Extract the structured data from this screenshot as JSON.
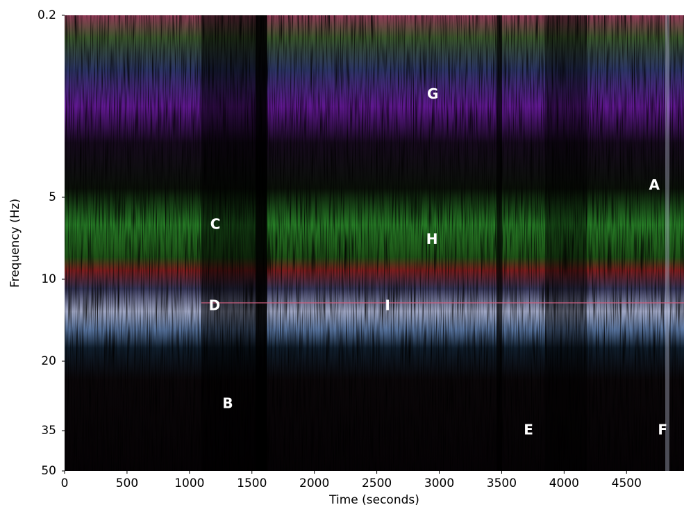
{
  "chart_data": {
    "type": "spectrogram",
    "xlabel": "Time (seconds)",
    "ylabel": "Frequency (Hz)",
    "xlim": [
      0,
      4960
    ],
    "xticks": [
      0,
      500,
      1000,
      1500,
      2000,
      2500,
      3000,
      3500,
      4000,
      4500
    ],
    "yticks": [
      0.2,
      5,
      10,
      20,
      35,
      50
    ],
    "annotations": [
      {
        "text": "G",
        "x": 2948,
        "y": 2.3
      },
      {
        "text": "A",
        "x": 4722,
        "y": 4.7
      },
      {
        "text": "C",
        "x": 1207,
        "y": 6.7
      },
      {
        "text": "H",
        "x": 2942,
        "y": 7.6
      },
      {
        "text": "D",
        "x": 1201,
        "y": 13.3
      },
      {
        "text": "I",
        "x": 2586,
        "y": 13.3
      },
      {
        "text": "B",
        "x": 1307,
        "y": 29.3
      },
      {
        "text": "E",
        "x": 3715,
        "y": 35
      },
      {
        "text": "F",
        "x": 4789,
        "y": 35
      }
    ]
  }
}
